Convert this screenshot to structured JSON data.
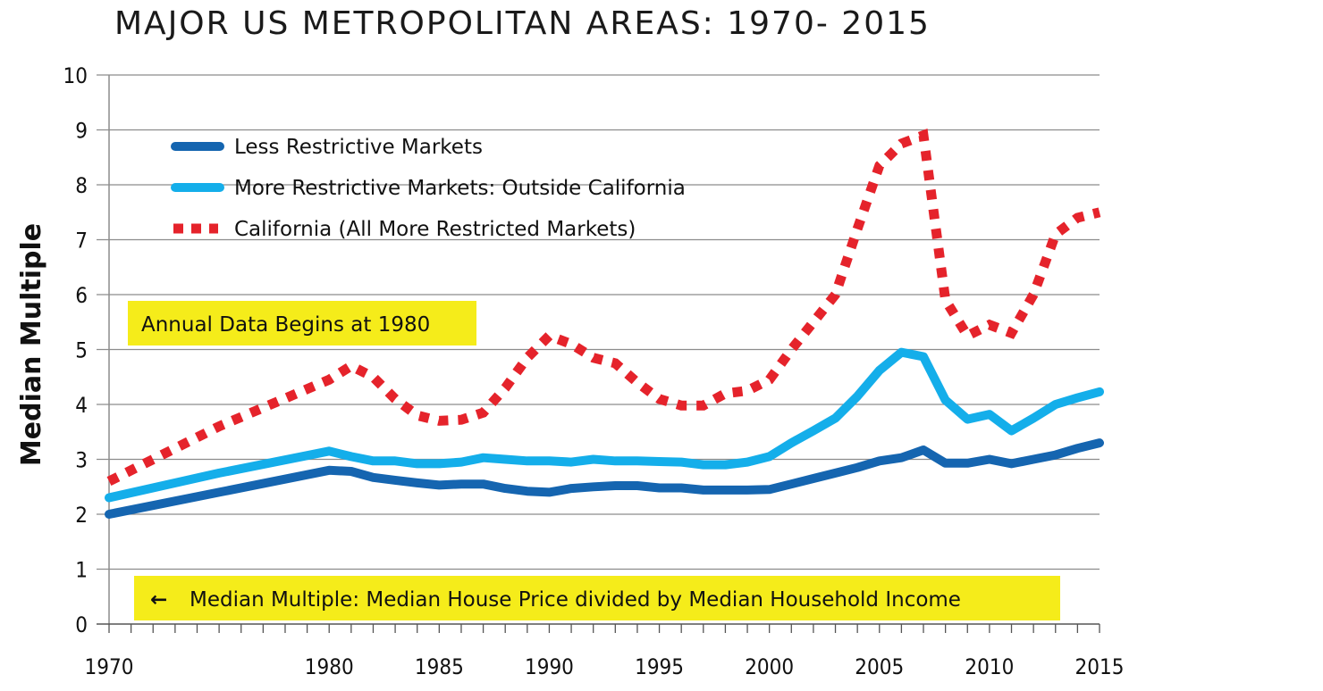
{
  "chart_data": {
    "type": "line",
    "title": "MAJOR US METROPOLITAN AREAS: 1970- 2015",
    "xlabel": "",
    "ylabel": "Median Multiple",
    "xlim": [
      1970,
      2015
    ],
    "ylim": [
      0,
      10
    ],
    "x_ticks": [
      "1970",
      "1980",
      "1985",
      "1990",
      "1995",
      "2000",
      "2005",
      "2010",
      "2015"
    ],
    "x_tick_values": [
      1970,
      1980,
      1985,
      1990,
      1995,
      2000,
      2005,
      2010,
      2015
    ],
    "y_ticks": [
      "0",
      "1",
      "2",
      "3",
      "4",
      "5",
      "6",
      "7",
      "8",
      "9",
      "10"
    ],
    "grid": true,
    "legend_position": "top-left",
    "series": [
      {
        "name": "Less Restrictive Markets",
        "color": "#1565b0",
        "style": "solid",
        "points": [
          [
            1970,
            2.0
          ],
          [
            1975,
            2.4
          ],
          [
            1980,
            2.8
          ],
          [
            1981,
            2.78
          ],
          [
            1982,
            2.67
          ],
          [
            1983,
            2.62
          ],
          [
            1984,
            2.57
          ],
          [
            1985,
            2.53
          ],
          [
            1986,
            2.55
          ],
          [
            1987,
            2.55
          ],
          [
            1988,
            2.47
          ],
          [
            1989,
            2.42
          ],
          [
            1990,
            2.4
          ],
          [
            1991,
            2.47
          ],
          [
            1992,
            2.5
          ],
          [
            1993,
            2.52
          ],
          [
            1994,
            2.52
          ],
          [
            1995,
            2.48
          ],
          [
            1996,
            2.48
          ],
          [
            1997,
            2.44
          ],
          [
            1998,
            2.44
          ],
          [
            1999,
            2.44
          ],
          [
            2000,
            2.45
          ],
          [
            2001,
            2.55
          ],
          [
            2002,
            2.65
          ],
          [
            2003,
            2.75
          ],
          [
            2004,
            2.85
          ],
          [
            2005,
            2.97
          ],
          [
            2006,
            3.03
          ],
          [
            2007,
            3.17
          ],
          [
            2008,
            2.93
          ],
          [
            2009,
            2.93
          ],
          [
            2010,
            3.0
          ],
          [
            2011,
            2.92
          ],
          [
            2012,
            3.0
          ],
          [
            2013,
            3.08
          ],
          [
            2014,
            3.2
          ],
          [
            2015,
            3.3
          ]
        ]
      },
      {
        "name": "More Restrictive Markets: Outside California",
        "color": "#14aeea",
        "style": "solid",
        "points": [
          [
            1970,
            2.3
          ],
          [
            1975,
            2.75
          ],
          [
            1980,
            3.15
          ],
          [
            1981,
            3.05
          ],
          [
            1982,
            2.97
          ],
          [
            1983,
            2.97
          ],
          [
            1984,
            2.92
          ],
          [
            1985,
            2.92
          ],
          [
            1986,
            2.95
          ],
          [
            1987,
            3.03
          ],
          [
            1988,
            3.0
          ],
          [
            1989,
            2.97
          ],
          [
            1990,
            2.97
          ],
          [
            1991,
            2.95
          ],
          [
            1992,
            3.0
          ],
          [
            1993,
            2.97
          ],
          [
            1994,
            2.97
          ],
          [
            1995,
            2.96
          ],
          [
            1996,
            2.95
          ],
          [
            1997,
            2.9
          ],
          [
            1998,
            2.9
          ],
          [
            1999,
            2.95
          ],
          [
            2000,
            3.05
          ],
          [
            2001,
            3.3
          ],
          [
            2002,
            3.52
          ],
          [
            2003,
            3.75
          ],
          [
            2004,
            4.15
          ],
          [
            2005,
            4.62
          ],
          [
            2006,
            4.95
          ],
          [
            2007,
            4.87
          ],
          [
            2008,
            4.08
          ],
          [
            2009,
            3.73
          ],
          [
            2010,
            3.82
          ],
          [
            2011,
            3.52
          ],
          [
            2012,
            3.75
          ],
          [
            2013,
            4.0
          ],
          [
            2014,
            4.12
          ],
          [
            2015,
            4.23
          ]
        ]
      },
      {
        "name": "California (All More Restricted Markets)",
        "color": "#e5232b",
        "style": "dotted",
        "points": [
          [
            1970,
            2.6
          ],
          [
            1975,
            3.6
          ],
          [
            1980,
            4.45
          ],
          [
            1981,
            4.7
          ],
          [
            1982,
            4.5
          ],
          [
            1983,
            4.1
          ],
          [
            1984,
            3.8
          ],
          [
            1985,
            3.7
          ],
          [
            1986,
            3.72
          ],
          [
            1987,
            3.85
          ],
          [
            1988,
            4.3
          ],
          [
            1989,
            4.85
          ],
          [
            1990,
            5.25
          ],
          [
            1991,
            5.1
          ],
          [
            1992,
            4.85
          ],
          [
            1993,
            4.75
          ],
          [
            1994,
            4.4
          ],
          [
            1995,
            4.1
          ],
          [
            1996,
            3.98
          ],
          [
            1997,
            3.98
          ],
          [
            1998,
            4.2
          ],
          [
            1999,
            4.25
          ],
          [
            2000,
            4.45
          ],
          [
            2001,
            5.0
          ],
          [
            2002,
            5.5
          ],
          [
            2003,
            6.0
          ],
          [
            2004,
            7.2
          ],
          [
            2005,
            8.35
          ],
          [
            2006,
            8.75
          ],
          [
            2007,
            8.9
          ],
          [
            2008,
            5.9
          ],
          [
            2009,
            5.25
          ],
          [
            2010,
            5.45
          ],
          [
            2011,
            5.3
          ],
          [
            2012,
            6.0
          ],
          [
            2013,
            7.1
          ],
          [
            2014,
            7.4
          ],
          [
            2015,
            7.5
          ]
        ]
      }
    ],
    "annotations": [
      "Annual Data Begins at 1980",
      "Median Multiple: Median House Price divided by Median Household Income"
    ],
    "note_arrow": "←"
  }
}
